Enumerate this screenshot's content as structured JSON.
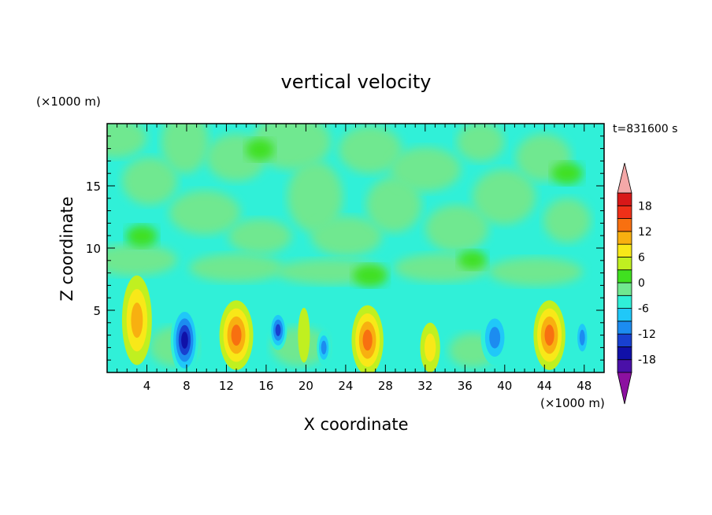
{
  "chart_data": {
    "type": "heatmap",
    "title": "vertical velocity",
    "xlabel": "X coordinate",
    "ylabel": "Z coordinate",
    "x_unit_label": "(×1000 m)",
    "y_unit_label": "(×1000 m)",
    "time_label": "t=831600 s",
    "xlim": [
      0,
      50
    ],
    "ylim": [
      0,
      20
    ],
    "x_ticks": [
      4,
      8,
      12,
      16,
      20,
      24,
      28,
      32,
      36,
      40,
      44,
      48
    ],
    "y_ticks": [
      5,
      10,
      15
    ],
    "colorbar": {
      "levels": [
        -21,
        -18,
        -15,
        -12,
        -9,
        -6,
        -3,
        0,
        3,
        6,
        9,
        12,
        15,
        18,
        21
      ],
      "tick_labels": [
        "18",
        "12",
        "6",
        "0",
        "-6",
        "-12",
        "-18"
      ],
      "tick_values": [
        18,
        12,
        6,
        0,
        -6,
        -12,
        -18
      ],
      "colors": [
        "#8c10a0",
        "#4a10a8",
        "#1010a8",
        "#1840d0",
        "#1c8cf0",
        "#20c8f8",
        "#30f0d8",
        "#70e890",
        "#40e020",
        "#c0f020",
        "#f8e818",
        "#f8b010",
        "#f87010",
        "#f03018",
        "#d81818",
        "#f4a8a8"
      ],
      "over_color": "#f4a8a8",
      "under_color": "#8c10a0"
    },
    "cells": [
      {
        "x": 3.0,
        "z": 4.2,
        "value": 9,
        "rx": 1.5,
        "rz": 3.6
      },
      {
        "x": 7.8,
        "z": 2.6,
        "value": -15,
        "rx": 1.4,
        "rz": 2.8
      },
      {
        "x": 13.0,
        "z": 3.0,
        "value": 12,
        "rx": 1.7,
        "rz": 2.8
      },
      {
        "x": 17.2,
        "z": 3.4,
        "value": -12,
        "rx": 0.9,
        "rz": 1.6
      },
      {
        "x": 19.8,
        "z": 3.0,
        "value": 4,
        "rx": 0.6,
        "rz": 2.2
      },
      {
        "x": 21.8,
        "z": 2.0,
        "value": -9,
        "rx": 0.7,
        "rz": 1.4
      },
      {
        "x": 26.2,
        "z": 2.6,
        "value": 12,
        "rx": 1.6,
        "rz": 2.8
      },
      {
        "x": 32.5,
        "z": 2.0,
        "value": 8,
        "rx": 1.0,
        "rz": 2.0
      },
      {
        "x": 39.0,
        "z": 2.8,
        "value": -9,
        "rx": 1.4,
        "rz": 2.2
      },
      {
        "x": 44.5,
        "z": 3.0,
        "value": 12,
        "rx": 1.6,
        "rz": 2.8
      },
      {
        "x": 47.8,
        "z": 2.8,
        "value": -9,
        "rx": 0.7,
        "rz": 1.6
      }
    ]
  }
}
